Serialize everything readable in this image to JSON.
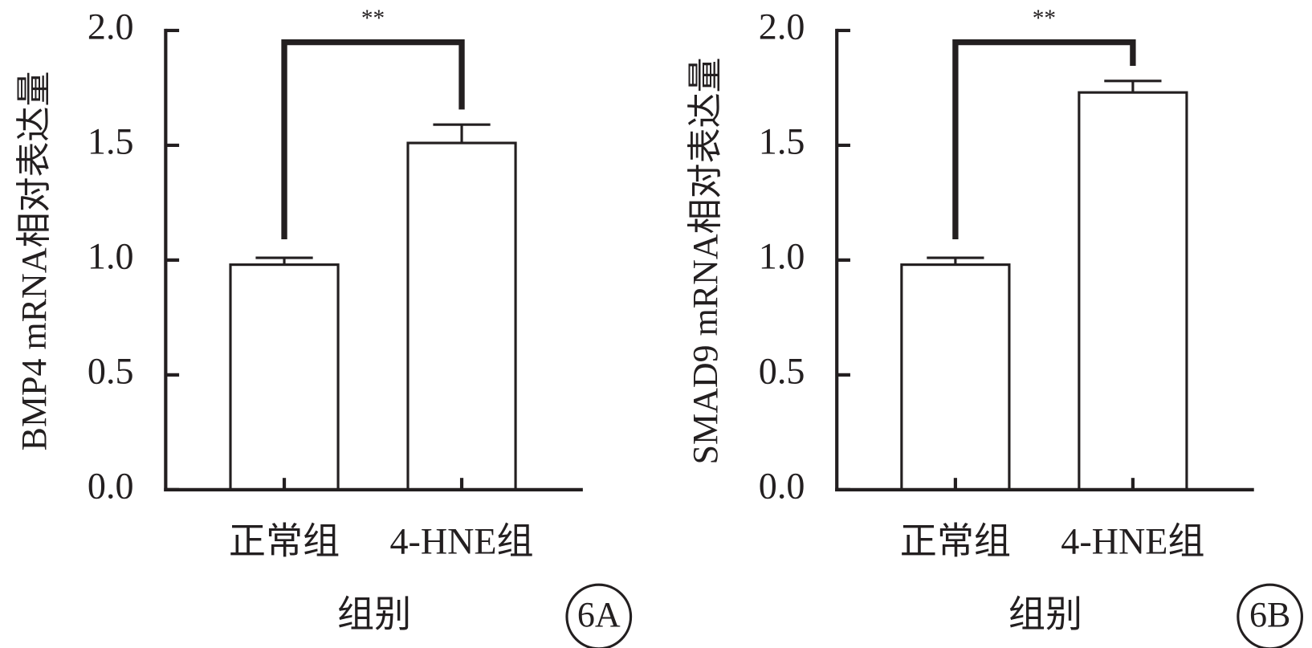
{
  "chart_data": [
    {
      "type": "bar",
      "y_label": "BMP4 mRNA相对表达量",
      "x_label": "组别",
      "panel_label": "6A",
      "annotation": "**",
      "categories": [
        "正常组",
        "4-HNE组"
      ],
      "values": [
        0.98,
        1.51
      ],
      "errors": [
        0.03,
        0.08
      ],
      "color": "#ffffff",
      "edge_color": "#231f20",
      "ylim": [
        0,
        2
      ],
      "yticks": [
        {
          "value": 0,
          "label": "0.0"
        },
        {
          "value": 0.5,
          "label": "0.5"
        },
        {
          "value": 1,
          "label": "1.0"
        },
        {
          "value": 1.5,
          "label": "1.5"
        },
        {
          "value": 2,
          "label": "2.0"
        }
      ]
    },
    {
      "type": "bar",
      "y_label": "SMAD9 mRNA相对表达量",
      "x_label": "组别",
      "panel_label": "6B",
      "annotation": "**",
      "categories": [
        "正常组",
        "4-HNE组"
      ],
      "values": [
        0.98,
        1.73
      ],
      "errors": [
        0.03,
        0.05
      ],
      "color": "#ffffff",
      "edge_color": "#231f20",
      "ylim": [
        0,
        2
      ],
      "yticks": [
        {
          "value": 0,
          "label": "0.0"
        },
        {
          "value": 0.5,
          "label": "0.5"
        },
        {
          "value": 1,
          "label": "1.0"
        },
        {
          "value": 1.5,
          "label": "1.5"
        },
        {
          "value": 2,
          "label": "2.0"
        }
      ]
    }
  ]
}
